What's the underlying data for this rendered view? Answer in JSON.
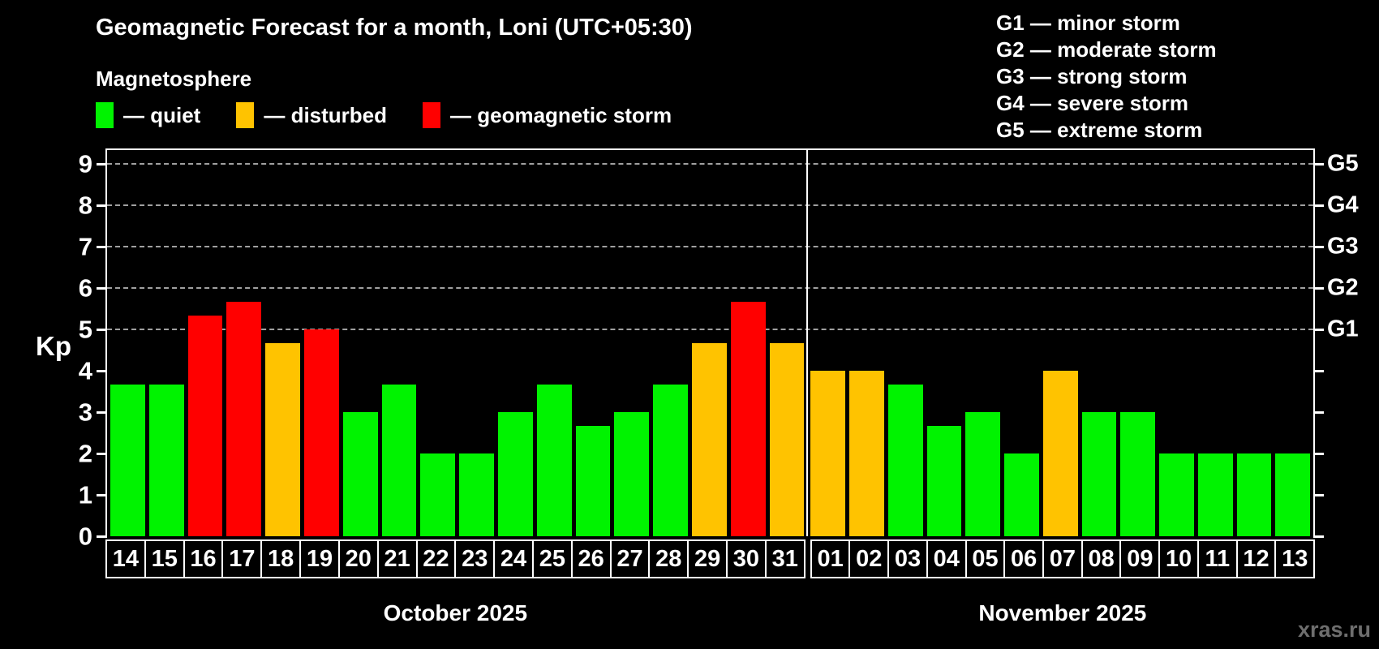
{
  "title": "Geomagnetic Forecast for a month, Loni (UTC+05:30)",
  "subtitle": "Magnetosphere",
  "bar_legend": [
    {
      "level": "quiet",
      "label": "— quiet"
    },
    {
      "level": "disturbed",
      "label": "— disturbed"
    },
    {
      "level": "storm",
      "label": "— geomagnetic storm"
    }
  ],
  "g_legend": [
    "G1 — minor storm",
    "G2 — moderate storm",
    "G3 — strong storm",
    "G4 — severe storm",
    "G5 — extreme storm"
  ],
  "colors": {
    "quiet": "#00f300",
    "disturbed": "#ffc300",
    "storm": "#ff0000",
    "grid": "#a0a0a0",
    "axis": "#ffffff",
    "watermark": "#6e6e6e"
  },
  "y_axis": {
    "label": "Kp",
    "ticks": [
      0,
      1,
      2,
      3,
      4,
      5,
      6,
      7,
      8,
      9
    ]
  },
  "right_axis": {
    "labels": [
      {
        "value": 5,
        "text": "G1"
      },
      {
        "value": 6,
        "text": "G2"
      },
      {
        "value": 7,
        "text": "G3"
      },
      {
        "value": 8,
        "text": "G4"
      },
      {
        "value": 9,
        "text": "G5"
      }
    ]
  },
  "watermark": "xras.ru",
  "chart_data": {
    "type": "bar",
    "title": "Geomagnetic Forecast for a month, Loni (UTC+05:30)",
    "subtitle": "Magnetosphere",
    "ylabel": "Kp",
    "ylim": [
      0,
      9.33
    ],
    "grid": "dashed horizontal at Kp 5,6,7,8,9",
    "gridlines_at": [
      5,
      6,
      7,
      8,
      9
    ],
    "legend_position": "top",
    "level_thresholds": {
      "quiet": "Kp < 4",
      "disturbed": "4 <= Kp < 5",
      "storm": "Kp >= 5"
    },
    "months": [
      {
        "name": "October 2025",
        "days": [
          "14",
          "15",
          "16",
          "17",
          "18",
          "19",
          "20",
          "21",
          "22",
          "23",
          "24",
          "25",
          "26",
          "27",
          "28",
          "29",
          "30",
          "31"
        ],
        "kp": [
          3.67,
          3.67,
          5.33,
          5.67,
          4.67,
          5,
          3,
          3.67,
          2,
          2,
          3,
          3.67,
          2.67,
          3,
          3.67,
          4.67,
          5.67,
          4.67
        ],
        "levels": [
          "quiet",
          "quiet",
          "storm",
          "storm",
          "disturbed",
          "storm",
          "quiet",
          "quiet",
          "quiet",
          "quiet",
          "quiet",
          "quiet",
          "quiet",
          "quiet",
          "quiet",
          "disturbed",
          "storm",
          "disturbed"
        ]
      },
      {
        "name": "November 2025",
        "days": [
          "01",
          "02",
          "03",
          "04",
          "05",
          "06",
          "07",
          "08",
          "09",
          "10",
          "11",
          "12",
          "13"
        ],
        "kp": [
          4,
          4,
          3.67,
          2.67,
          3,
          2,
          4,
          3,
          3,
          2,
          2,
          2,
          2
        ],
        "levels": [
          "disturbed",
          "disturbed",
          "quiet",
          "quiet",
          "quiet",
          "quiet",
          "disturbed",
          "quiet",
          "quiet",
          "quiet",
          "quiet",
          "quiet",
          "quiet"
        ]
      }
    ]
  }
}
